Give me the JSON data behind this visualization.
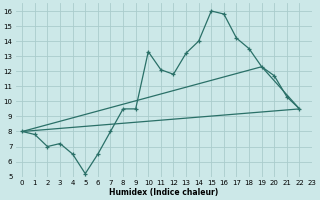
{
  "xlabel": "Humidex (Indice chaleur)",
  "bg_color": "#cce8e8",
  "grid_color": "#aacccc",
  "line_color": "#2a7068",
  "xlim": [
    -0.5,
    23
  ],
  "ylim": [
    5,
    16.5
  ],
  "xticks": [
    0,
    1,
    2,
    3,
    4,
    5,
    6,
    7,
    8,
    9,
    10,
    11,
    12,
    13,
    14,
    15,
    16,
    17,
    18,
    19,
    20,
    21,
    22,
    23
  ],
  "yticks": [
    5,
    6,
    7,
    8,
    9,
    10,
    11,
    12,
    13,
    14,
    15,
    16
  ],
  "line1_x": [
    0,
    1,
    2,
    3,
    4,
    5,
    6,
    7,
    8,
    9,
    10,
    11,
    12,
    13,
    14,
    15,
    16,
    17,
    18,
    19,
    20,
    21,
    22
  ],
  "line1_y": [
    8.0,
    7.8,
    7.0,
    7.2,
    6.5,
    5.2,
    6.5,
    8.0,
    9.5,
    9.5,
    13.3,
    12.1,
    11.8,
    13.2,
    14.0,
    16.0,
    15.8,
    14.2,
    13.5,
    12.3,
    11.7,
    10.3,
    9.5
  ],
  "line2_x": [
    0,
    22
  ],
  "line2_y": [
    8.0,
    9.5
  ],
  "line3_x": [
    0,
    19,
    22
  ],
  "line3_y": [
    8.0,
    12.3,
    9.5
  ]
}
